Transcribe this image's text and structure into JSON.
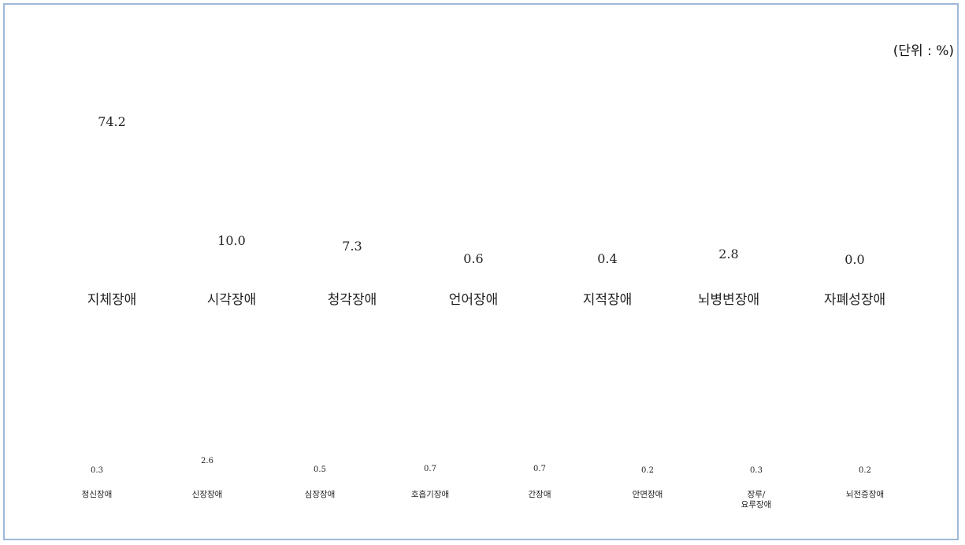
{
  "unit_label": "(단위 : %)",
  "chart_data": [
    {
      "type": "bar",
      "categories": [
        "지체장애",
        "시각장애",
        "청각장애",
        "언어장애",
        "지적장애",
        "뇌병변장애",
        "자폐성장애"
      ],
      "values": [
        74.2,
        10.0,
        7.3,
        0.6,
        0.4,
        2.8,
        0.0
      ],
      "value_labels": [
        "74.2",
        "10.0",
        "7.3",
        "0.6",
        "0.4",
        "2.8",
        "0.0"
      ],
      "unit": "%"
    },
    {
      "type": "bar",
      "categories": [
        "정신장애",
        "신장장애",
        "심장장애",
        "호흡기장애",
        "간장애",
        "안면장애",
        "장루/\n요루장애",
        "뇌전증장애"
      ],
      "values": [
        0.3,
        2.6,
        0.5,
        0.7,
        0.7,
        0.2,
        0.3,
        0.2
      ],
      "value_labels": [
        "0.3",
        "2.6",
        "0.5",
        "0.7",
        "0.7",
        "0.2",
        "0.3",
        "0.2"
      ],
      "unit": "%"
    }
  ]
}
